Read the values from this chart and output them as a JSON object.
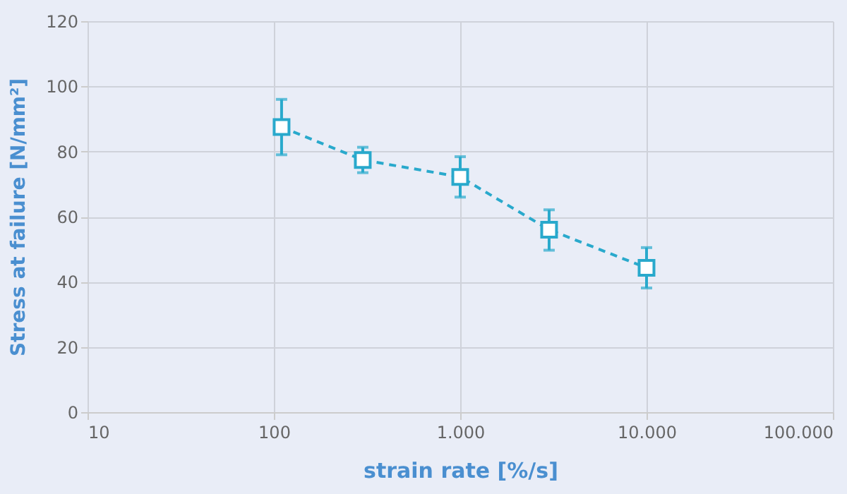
{
  "chart_data": {
    "type": "line",
    "xlabel": "strain rate [%/s]",
    "ylabel": "Stress at failure [N/mm²]",
    "x": [
      110,
      300,
      1000,
      3000,
      10000
    ],
    "series": [
      {
        "color": "#29a9cc",
        "values": [
          87.5,
          77.4,
          72.2,
          56,
          44.3
        ],
        "errors": [
          [
            79,
            96
          ],
          [
            73.5,
            81.3
          ],
          [
            66,
            78.4
          ],
          [
            49.7,
            62.1
          ],
          [
            38.1,
            50.5
          ]
        ]
      }
    ],
    "log": "x",
    "xlim": [
      10,
      100000
    ],
    "xticks": [
      10,
      100,
      {
        "value": 1000,
        "label": "1.000"
      },
      {
        "value": 10000,
        "label": "10.000"
      },
      {
        "value": 100000,
        "label": "100.000"
      }
    ],
    "ylim": [
      0,
      120
    ],
    "yticks": [
      0,
      20,
      40,
      60,
      80,
      100,
      120
    ],
    "grid": true,
    "marker": "square",
    "line_style": "dashed"
  }
}
